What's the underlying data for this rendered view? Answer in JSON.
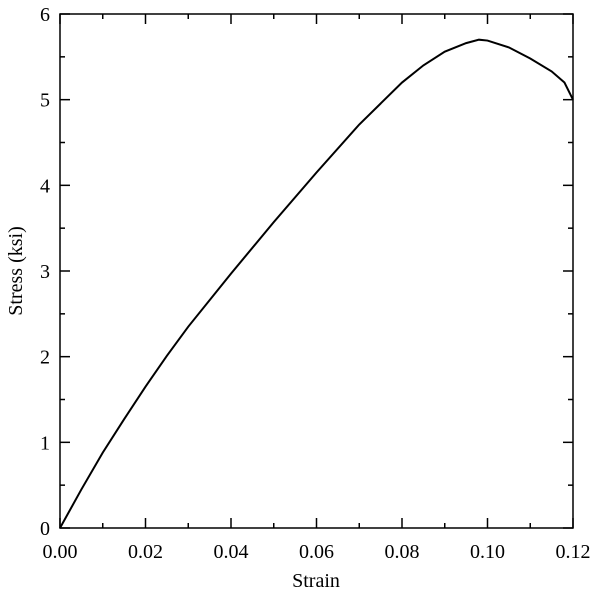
{
  "chart_data": {
    "type": "line",
    "xlabel": "Strain",
    "ylabel": "Stress (ksi)",
    "x": [
      0,
      0.005,
      0.01,
      0.015,
      0.02,
      0.025,
      0.03,
      0.04,
      0.05,
      0.06,
      0.07,
      0.08,
      0.085,
      0.09,
      0.095,
      0.098,
      0.1,
      0.105,
      0.11,
      0.115,
      0.118,
      0.12
    ],
    "series": [
      {
        "color": "#000000",
        "values": [
          0,
          0.45,
          0.88,
          1.27,
          1.65,
          2.01,
          2.35,
          2.97,
          3.57,
          4.15,
          4.71,
          5.2,
          5.4,
          5.56,
          5.66,
          5.7,
          5.69,
          5.61,
          5.48,
          5.33,
          5.2,
          5.0
        ]
      }
    ],
    "xlim": [
      0,
      0.12
    ],
    "ylim": [
      0,
      6
    ],
    "xticks": [
      {
        "value": 0,
        "label": "0.00"
      },
      0.02,
      0.04,
      0.06,
      0.08,
      {
        "value": 0.1,
        "label": "0.10"
      },
      0.12
    ],
    "yticks": [
      0,
      1,
      2,
      3,
      4,
      5,
      6
    ],
    "xminorticks": [
      0.01,
      0.03,
      0.05,
      0.07,
      0.09,
      0.11
    ],
    "yminorticks": [
      0.5,
      1.5,
      2.5,
      3.5,
      4.5,
      5.5
    ],
    "grid": false
  }
}
